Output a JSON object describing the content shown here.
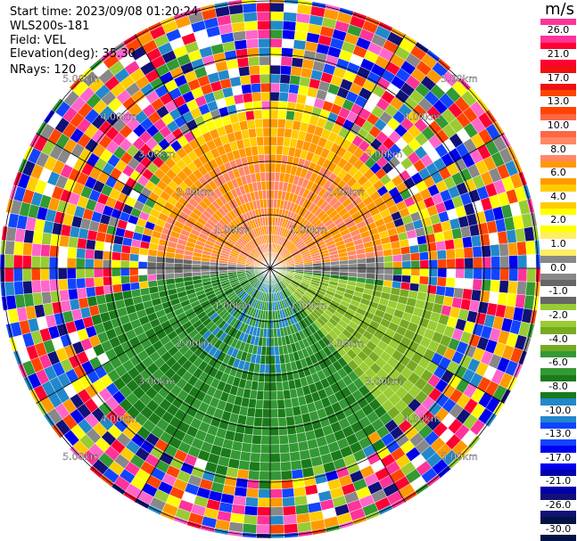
{
  "header": {
    "start_time": "Start time: 2023/09/08 01:20:24",
    "site": "WLS200s-181",
    "field": "Field: VEL",
    "elevation": "Elevation(deg): 35.30",
    "nrays": "NRays: 120"
  },
  "colorbar": {
    "unit": "m/s",
    "ticks": [
      "26.0",
      "21.0",
      "17.0",
      "13.0",
      "10.0",
      "8.0",
      "6.0",
      "4.0",
      "2.0",
      "1.0",
      "0.0",
      "-1.0",
      "-2.0",
      "-4.0",
      "-6.0",
      "-8.0",
      "-10.0",
      "-13.0",
      "-17.0",
      "-21.0",
      "-26.0",
      "-30.0"
    ],
    "colors": [
      "#ff3399",
      "#ff0033",
      "#ee1111",
      "#ff4400",
      "#ff6644",
      "#ff8866",
      "#ff9900",
      "#ffcc00",
      "#ffff00",
      "#ffee66",
      "#888888",
      "#666666",
      "#99cc33",
      "#77aa22",
      "#339933",
      "#1a7a1a",
      "#2288cc",
      "#1144ff",
      "#0000ee",
      "#0000aa",
      "#111177",
      "#001144"
    ]
  },
  "range_rings": {
    "labels": [
      "1.00km",
      "2.00km",
      "3.00km",
      "4.00km",
      "5.00km"
    ]
  }
}
